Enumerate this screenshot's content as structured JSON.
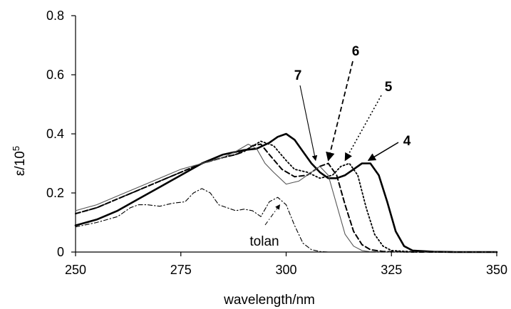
{
  "chart_data": {
    "type": "line",
    "title": "",
    "xlabel": "wavelength/nm",
    "ylabel_base": "ε/10",
    "ylabel_exp": "5",
    "xlim": [
      250,
      350
    ],
    "ylim": [
      0,
      0.8
    ],
    "xticks": [
      250,
      275,
      300,
      325,
      350
    ],
    "xtick_labels": [
      "250",
      "275",
      "300",
      "325",
      "350"
    ],
    "yticks": [
      0,
      0.2,
      0.4,
      0.6,
      0.8
    ],
    "ytick_labels": [
      "0",
      "0.2",
      "0.4",
      "0.6",
      "0.8"
    ],
    "grid": false,
    "legend": "none",
    "series": [
      {
        "name": "4",
        "style": "solid-thick",
        "color": "#000000",
        "x": [
          250,
          255,
          260,
          265,
          270,
          275,
          280,
          285,
          290,
          293,
          296,
          298,
          300,
          302,
          304,
          306,
          308,
          310,
          312,
          314,
          316,
          318,
          320,
          322,
          324,
          326,
          328,
          330,
          335,
          340,
          350
        ],
        "y": [
          0.09,
          0.11,
          0.14,
          0.18,
          0.22,
          0.26,
          0.3,
          0.33,
          0.345,
          0.35,
          0.37,
          0.39,
          0.4,
          0.38,
          0.34,
          0.3,
          0.27,
          0.25,
          0.25,
          0.26,
          0.28,
          0.3,
          0.3,
          0.26,
          0.17,
          0.07,
          0.02,
          0.005,
          0.001,
          0,
          0
        ]
      },
      {
        "name": "5",
        "style": "dotted",
        "color": "#000000",
        "x": [
          250,
          255,
          260,
          265,
          270,
          275,
          280,
          285,
          288,
          291,
          294,
          297,
          300,
          302,
          305,
          308,
          311,
          313,
          315,
          317,
          319,
          321,
          323,
          325,
          330,
          335,
          350
        ],
        "y": [
          0.13,
          0.15,
          0.18,
          0.21,
          0.24,
          0.27,
          0.3,
          0.32,
          0.33,
          0.35,
          0.375,
          0.36,
          0.31,
          0.28,
          0.27,
          0.25,
          0.26,
          0.29,
          0.3,
          0.26,
          0.15,
          0.06,
          0.02,
          0.005,
          0.001,
          0,
          0
        ]
      },
      {
        "name": "6",
        "style": "dashed",
        "color": "#000000",
        "x": [
          250,
          255,
          260,
          265,
          270,
          275,
          280,
          285,
          288,
          290,
          292,
          294,
          296,
          299,
          302,
          305,
          308,
          310,
          312,
          314,
          316,
          318,
          320,
          323,
          330,
          350
        ],
        "y": [
          0.13,
          0.15,
          0.18,
          0.21,
          0.24,
          0.27,
          0.3,
          0.32,
          0.33,
          0.34,
          0.36,
          0.365,
          0.33,
          0.28,
          0.255,
          0.26,
          0.29,
          0.3,
          0.26,
          0.16,
          0.07,
          0.025,
          0.008,
          0.002,
          0,
          0
        ]
      },
      {
        "name": "7",
        "style": "solid-thin",
        "color": "#555555",
        "x": [
          250,
          255,
          260,
          265,
          270,
          275,
          280,
          285,
          288,
          291,
          293,
          295,
          297,
          300,
          303,
          306,
          308,
          310,
          312,
          314,
          316,
          318,
          320,
          325,
          350
        ],
        "y": [
          0.14,
          0.16,
          0.19,
          0.22,
          0.25,
          0.28,
          0.3,
          0.32,
          0.34,
          0.365,
          0.35,
          0.3,
          0.27,
          0.23,
          0.24,
          0.27,
          0.29,
          0.26,
          0.16,
          0.06,
          0.02,
          0.005,
          0.001,
          0,
          0
        ]
      },
      {
        "name": "tolan",
        "style": "dash-dot",
        "color": "#000000",
        "x": [
          250,
          255,
          260,
          263,
          265,
          267,
          270,
          273,
          276,
          278,
          280,
          282,
          284,
          286,
          288,
          290,
          292,
          294,
          296,
          298,
          300,
          302,
          304,
          306,
          308,
          310,
          350
        ],
        "y": [
          0.085,
          0.1,
          0.12,
          0.15,
          0.16,
          0.16,
          0.155,
          0.165,
          0.17,
          0.2,
          0.215,
          0.2,
          0.16,
          0.15,
          0.14,
          0.145,
          0.14,
          0.12,
          0.17,
          0.185,
          0.16,
          0.09,
          0.03,
          0.008,
          0.002,
          0,
          0
        ]
      }
    ],
    "annotations": [
      {
        "label": "4",
        "target_x": 319.5,
        "target_y": 0.31
      },
      {
        "label": "5",
        "target_x": 314,
        "target_y": 0.31
      },
      {
        "label": "6",
        "target_x": 310,
        "target_y": 0.31
      },
      {
        "label": "7",
        "target_x": 307,
        "target_y": 0.31
      },
      {
        "label": "tolan",
        "target_x": 298.5,
        "target_y": 0.16
      }
    ]
  }
}
